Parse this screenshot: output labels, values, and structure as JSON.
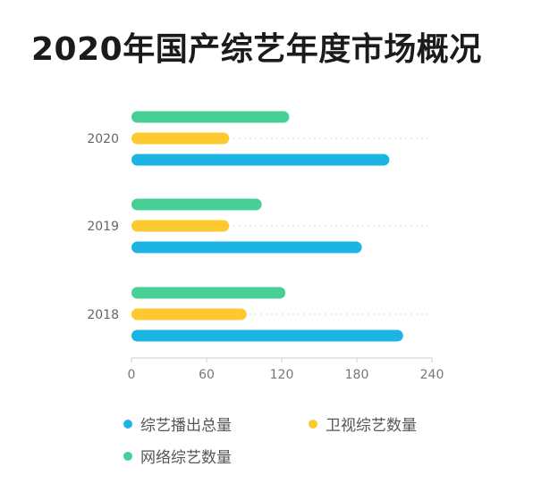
{
  "title": "2020年国产综艺年度市场概况",
  "chart_data": {
    "type": "bar",
    "orientation": "horizontal",
    "categories": [
      "2020",
      "2019",
      "2018"
    ],
    "series": [
      {
        "name": "网络综艺数量",
        "color": "#48cf96",
        "values": [
          126,
          104,
          123
        ]
      },
      {
        "name": "卫视综艺数量",
        "color": "#fcc92e",
        "values": [
          78,
          78,
          92
        ]
      },
      {
        "name": "综艺播出总量",
        "color": "#1cb5e3",
        "values": [
          206,
          184,
          217
        ]
      }
    ],
    "xlim": [
      0,
      240
    ],
    "xticks": [
      "0",
      "60",
      "120",
      "180",
      "240"
    ],
    "grid": true,
    "legend_order": [
      "综艺播出总量",
      "卫视综艺数量",
      "网络综艺数量"
    ],
    "legend_placement": "bottom"
  }
}
